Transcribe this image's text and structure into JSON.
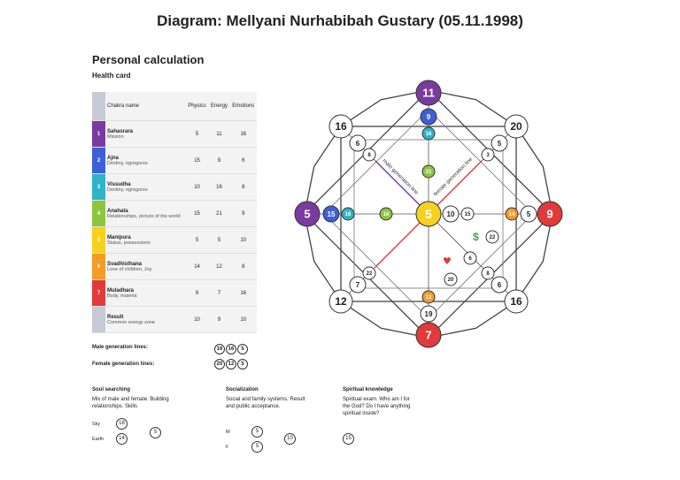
{
  "title": "Diagram: Mellyani Nurhabibah Gustary (05.11.1998)",
  "heading": "Personal calculation",
  "subheading": "Health card",
  "table": {
    "headers": [
      "Chakra name",
      "Physics",
      "Energy",
      "Emotions"
    ],
    "rows": [
      {
        "n": "1",
        "name": "Sahasrara",
        "desc": "Mission",
        "p": "5",
        "e": "11",
        "m": "16",
        "color": "#7b3aa0"
      },
      {
        "n": "2",
        "name": "Ajna",
        "desc": "Destiny, egregores",
        "p": "15",
        "e": "9",
        "m": "6",
        "color": "#3f5fd6"
      },
      {
        "n": "3",
        "name": "Vissudha",
        "desc": "Destiny, egregores",
        "p": "10",
        "e": "16",
        "m": "8",
        "color": "#2fb3c9"
      },
      {
        "n": "4",
        "name": "Anahata",
        "desc": "Relationships, picture of the world",
        "p": "15",
        "e": "21",
        "m": "9",
        "color": "#8cc63e"
      },
      {
        "n": "5",
        "name": "Manipura",
        "desc": "Status, possessions",
        "p": "5",
        "e": "5",
        "m": "10",
        "color": "#f6d21f"
      },
      {
        "n": "6",
        "name": "Svadhisthana",
        "desc": "Love of children, Joy",
        "p": "14",
        "e": "12",
        "m": "8",
        "color": "#f39c2a"
      },
      {
        "n": "7",
        "name": "Muladhara",
        "desc": "Body, materia",
        "p": "9",
        "e": "7",
        "m": "16",
        "color": "#e23a3a"
      },
      {
        "n": "",
        "name": "Result",
        "desc": "Common energy zone",
        "p": "10",
        "e": "9",
        "m": "10",
        "color": "#c7c9d6"
      }
    ]
  },
  "generation": {
    "male_label": "Male generation lines:",
    "male": [
      "16",
      "16",
      "5"
    ],
    "female_label": "Female generation lines:",
    "female": [
      "20",
      "12",
      "5"
    ]
  },
  "soul": {
    "title": "Soul searching",
    "text": "Mix of male and female. Building relationships. Skills",
    "sky_label": "Sky",
    "sky": "18",
    "earth_label": "Earth",
    "earth": "14",
    "result": "5"
  },
  "social": {
    "title": "Socialization",
    "text": "Social and family systems. Result and public acceptance.",
    "m_label": "M",
    "m": "5",
    "f_label": "F",
    "f": "5",
    "result": "10"
  },
  "spiritual": {
    "title": "Spiritual knowledge",
    "text": "Spiritual exam. Who am I for the God? Do I have anything spiritual inside?",
    "value": "15"
  },
  "chart_data": {
    "type": "diagram",
    "center": "5",
    "big": {
      "top": "11",
      "left": "5",
      "right": "9",
      "bottom": "7"
    },
    "corners": {
      "tl": "16",
      "tr": "20",
      "bl": "12",
      "br": "16"
    },
    "inner": {
      "top2": "9",
      "top3": "16",
      "top4": "21",
      "left2": "15",
      "left3": "16",
      "left4": "16",
      "right2": "15",
      "right3": "14",
      "right4": "5",
      "bottom2": "19",
      "bottom3": "12",
      "c10": "10"
    },
    "small": {
      "tl1": "6",
      "tl2": "8",
      "tr1": "5",
      "tr2": "3",
      "bl1": "7",
      "bl2": "22",
      "br1": "6",
      "br2": "8",
      "r22": "22",
      "m6": "6",
      "m20": "20"
    },
    "labels": {
      "male_line": "male generation line",
      "female_line": "female generation line",
      "dollar": "$",
      "heart": "♥"
    }
  }
}
